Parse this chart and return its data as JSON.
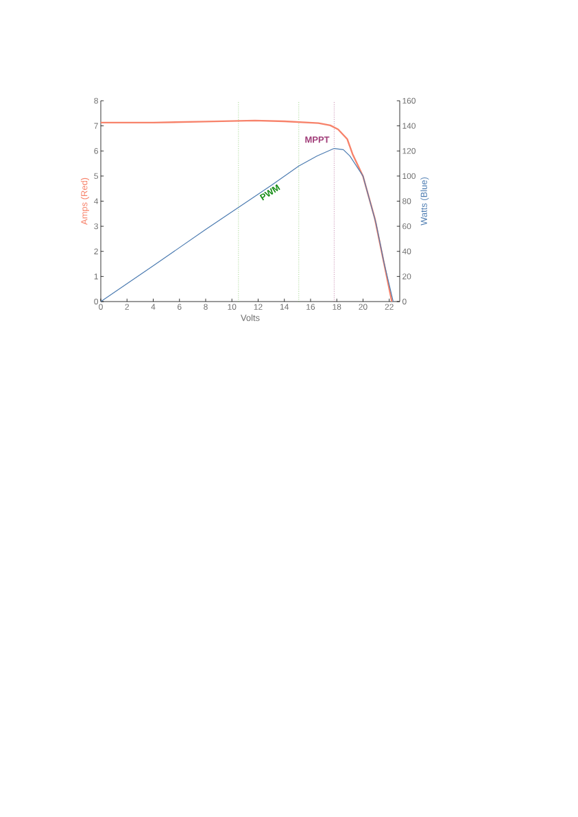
{
  "chart_data": {
    "type": "line",
    "xlabel": "Volts",
    "ylabel": "Amps (Red)",
    "y2label": "Watts (Blue)",
    "marker": "none",
    "xlim": [
      0,
      22.8
    ],
    "xticks": [
      0,
      2,
      4,
      6,
      8,
      10,
      12,
      14,
      16,
      18,
      20,
      22
    ],
    "ylim": [
      0,
      8
    ],
    "yticks": [
      0,
      1,
      2,
      3,
      4,
      5,
      6,
      7,
      8
    ],
    "y2lim": [
      0,
      160
    ],
    "y2ticks": [
      0,
      20,
      40,
      60,
      80,
      100,
      120,
      140,
      160
    ],
    "series": [
      {
        "color": "#f7826a",
        "x": [
          0,
          4,
          8,
          11.75,
          14,
          16.6,
          17.5,
          18.1,
          18.8,
          19.2,
          20.0,
          20.9,
          21.6,
          22.2
        ],
        "values": [
          7.13,
          7.13,
          7.17,
          7.21,
          7.18,
          7.11,
          7.02,
          6.86,
          6.47,
          5.88,
          4.99,
          3.31,
          1.53,
          0
        ]
      },
      {
        "color": "#4a7ab0",
        "axis": "y2",
        "x": [
          0,
          4,
          8,
          10.5,
          13,
          15.1,
          16.5,
          17.8,
          18.5,
          19,
          20,
          21,
          21.6,
          22.3
        ],
        "values": [
          0,
          28.5,
          57.5,
          75,
          92.5,
          108,
          116,
          122,
          121,
          116,
          100,
          62,
          31,
          0
        ]
      }
    ],
    "ref_lines": [
      {
        "axis": "x",
        "value": 10.5,
        "color": "#66bb44",
        "line_style": "dotted"
      },
      {
        "axis": "x",
        "value": 15.1,
        "color": "#66bb44",
        "line_style": "dotted"
      },
      {
        "axis": "x",
        "value": 17.8,
        "color": "#a03c78",
        "line_style": "dotted"
      }
    ],
    "annotations": [
      "PWM",
      "MPPT"
    ]
  }
}
